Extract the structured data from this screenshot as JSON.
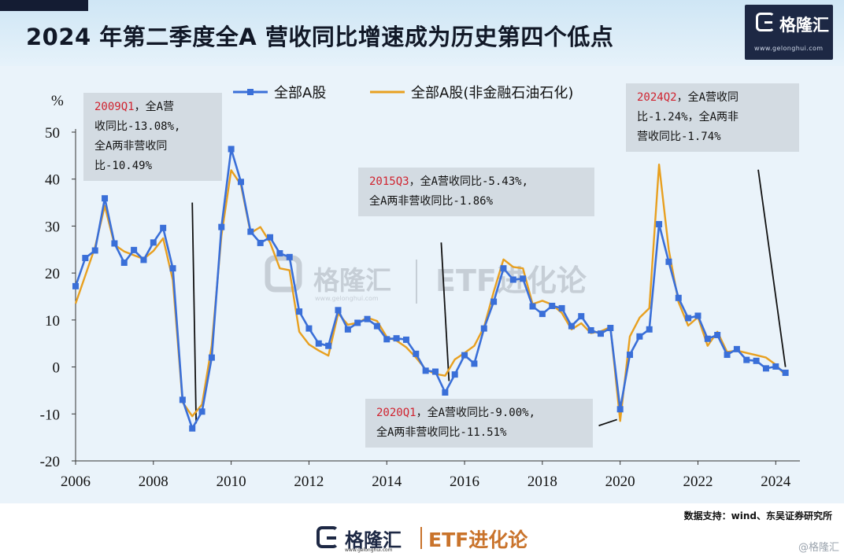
{
  "header": {
    "title": "2024 年第二季度全A 营收同比增速成为历史第四个低点",
    "brand_name": "格隆汇",
    "brand_url": "www.gelonghui.com"
  },
  "annotations": [
    {
      "highlight": "2009Q1",
      "text": "，全A营\n收同比-13.08%,\n全A两非营收同\n比-10.49%"
    },
    {
      "highlight": "2015Q3",
      "text": "，全A营收同比-5.43%,\n全A两非营收同比-1.86%"
    },
    {
      "highlight": "2020Q1",
      "text": "，全A营收同比-9.00%,\n全A两非营收同比-11.51%"
    },
    {
      "highlight": "2024Q2",
      "text": "，全A营收同\n比-1.24%，全A两非\n营收同比-1.74%"
    }
  ],
  "watermark": {
    "brand": "格隆汇",
    "url": "www.gelonghui.com",
    "tag": "ETF进化论"
  },
  "source": "数据支持：wind、东吴证券研究所",
  "footer": {
    "brand": "格隆汇",
    "url": "www.gelonghui.com",
    "tag": "ETF进化论"
  },
  "corner_watermark": "@格隆汇",
  "colors": {
    "series1": "#3a6fd8",
    "series2": "#e8a020",
    "accent_red": "#d0232f"
  },
  "chart_data": {
    "type": "line",
    "ylabel": "%",
    "ylim": [
      -20,
      50
    ],
    "yticks": [
      -20,
      -10,
      0,
      10,
      20,
      30,
      40,
      50
    ],
    "xlim": [
      2006,
      2024.5
    ],
    "xticks": [
      2006,
      2008,
      2010,
      2012,
      2014,
      2016,
      2018,
      2020,
      2022,
      2024
    ],
    "legend_position": "top",
    "grid": false,
    "series": [
      {
        "name": "全部A股",
        "marker": "square",
        "x": [
          2006,
          2006.25,
          2006.5,
          2006.75,
          2007,
          2007.25,
          2007.5,
          2007.75,
          2008,
          2008.25,
          2008.5,
          2008.75,
          2009,
          2009.25,
          2009.5,
          2009.75,
          2010,
          2010.25,
          2010.5,
          2010.75,
          2011,
          2011.25,
          2011.5,
          2011.75,
          2012,
          2012.25,
          2012.5,
          2012.75,
          2013,
          2013.25,
          2013.5,
          2013.75,
          2014,
          2014.25,
          2014.5,
          2014.75,
          2015,
          2015.25,
          2015.5,
          2015.75,
          2016,
          2016.25,
          2016.5,
          2016.75,
          2017,
          2017.25,
          2017.5,
          2017.75,
          2018,
          2018.25,
          2018.5,
          2018.75,
          2019,
          2019.25,
          2019.5,
          2019.75,
          2020,
          2020.25,
          2020.5,
          2020.75,
          2021,
          2021.25,
          2021.5,
          2021.75,
          2022,
          2022.25,
          2022.5,
          2022.75,
          2023,
          2023.25,
          2023.5,
          2023.75,
          2024,
          2024.25
        ],
        "values": [
          17.2,
          23.2,
          24.8,
          35.9,
          26.3,
          22.2,
          24.9,
          22.8,
          26.5,
          29.6,
          21.0,
          -7.0,
          -13.08,
          -9.5,
          2.0,
          29.8,
          46.4,
          39.4,
          28.8,
          26.4,
          27.6,
          24.2,
          23.4,
          11.8,
          8.2,
          5.0,
          4.5,
          12.1,
          8.0,
          9.4,
          10.2,
          8.7,
          5.9,
          6.1,
          5.8,
          2.8,
          -0.8,
          -1.0,
          -5.43,
          -1.6,
          2.5,
          0.7,
          8.2,
          13.9,
          21.0,
          18.6,
          18.8,
          12.9,
          11.3,
          13.0,
          12.5,
          8.7,
          10.8,
          7.8,
          7.1,
          8.3,
          -9.0,
          2.6,
          6.5,
          8.0,
          30.4,
          22.4,
          14.7,
          10.4,
          10.9,
          6.0,
          6.8,
          2.6,
          3.8,
          1.5,
          1.3,
          -0.3,
          0.1,
          -1.24
        ]
      },
      {
        "name": "全部A股(非金融石油石化)",
        "marker": "none",
        "x": [
          2006,
          2006.25,
          2006.5,
          2006.75,
          2007,
          2007.25,
          2007.5,
          2007.75,
          2008,
          2008.25,
          2008.5,
          2008.75,
          2009,
          2009.25,
          2009.5,
          2009.75,
          2010,
          2010.25,
          2010.5,
          2010.75,
          2011,
          2011.25,
          2011.5,
          2011.75,
          2012,
          2012.25,
          2012.5,
          2012.75,
          2013,
          2013.25,
          2013.5,
          2013.75,
          2014,
          2014.25,
          2014.5,
          2014.75,
          2015,
          2015.25,
          2015.5,
          2015.75,
          2016,
          2016.25,
          2016.5,
          2016.75,
          2017,
          2017.25,
          2017.5,
          2017.75,
          2018,
          2018.25,
          2018.5,
          2018.75,
          2019,
          2019.25,
          2019.5,
          2019.75,
          2020,
          2020.25,
          2020.5,
          2020.75,
          2021,
          2021.25,
          2021.5,
          2021.75,
          2022,
          2022.25,
          2022.5,
          2022.75,
          2023,
          2023.25,
          2023.5,
          2023.75,
          2024,
          2024.25
        ],
        "values": [
          13.5,
          19.5,
          25.5,
          34.3,
          26.0,
          24.6,
          23.8,
          23.0,
          24.7,
          27.4,
          18.5,
          -7.5,
          -10.49,
          -8.0,
          4.5,
          28.0,
          41.9,
          38.8,
          28.5,
          29.8,
          26.5,
          21.0,
          20.6,
          7.5,
          4.8,
          3.5,
          2.4,
          11.4,
          9.0,
          9.4,
          10.5,
          9.8,
          6.4,
          5.6,
          4.2,
          2.0,
          -0.5,
          -1.5,
          -1.86,
          1.6,
          3.0,
          4.5,
          8.5,
          16.0,
          22.9,
          21.3,
          21.0,
          13.4,
          14.1,
          13.3,
          11.5,
          8.0,
          9.3,
          7.2,
          7.6,
          8.5,
          -11.51,
          6.5,
          10.5,
          12.5,
          43.1,
          25.0,
          13.8,
          8.8,
          10.6,
          4.5,
          7.5,
          3.2,
          3.5,
          3.0,
          2.5,
          2.0,
          0.5,
          -1.74
        ]
      }
    ],
    "callout_lines": [
      {
        "from": [
          2009.0,
          35
        ],
        "to": [
          2009.1,
          -12
        ]
      },
      {
        "from": [
          2015.4,
          26.5
        ],
        "to": [
          2015.6,
          -3.0
        ]
      },
      {
        "from": [
          2019.45,
          -12.5
        ],
        "to": [
          2019.92,
          -11.2
        ]
      },
      {
        "from": [
          2023.55,
          42
        ],
        "to": [
          2024.25,
          0
        ]
      }
    ]
  }
}
